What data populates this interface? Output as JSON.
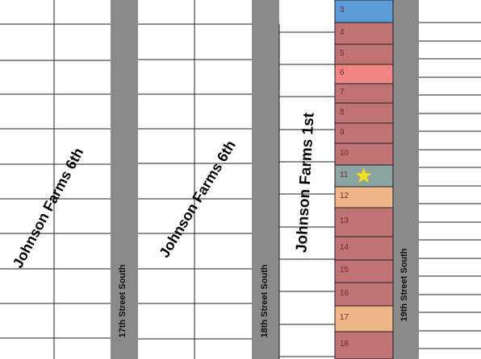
{
  "subdivisions": {
    "left": "Johnson Farms 6th",
    "middle": "Johnson Farms 6th",
    "right": "Johnson Farms 1st"
  },
  "streets": {
    "s17": "17th Street South",
    "s18": "18th Street South",
    "s19": "19th Street South"
  },
  "lots": [
    {
      "number": "3",
      "color": "#5b9bd8"
    },
    {
      "number": "4",
      "color": "#bf7373"
    },
    {
      "number": "5",
      "color": "#bf7373"
    },
    {
      "number": "6",
      "color": "#ef8585"
    },
    {
      "number": "7",
      "color": "#bf7373"
    },
    {
      "number": "8",
      "color": "#bf7373"
    },
    {
      "number": "9",
      "color": "#bf7373"
    },
    {
      "number": "10",
      "color": "#bf7373"
    },
    {
      "number": "11",
      "color": "#8aa3a3",
      "marker": "star-icon"
    },
    {
      "number": "12",
      "color": "#efb689"
    },
    {
      "number": "13",
      "color": "#bf7373"
    },
    {
      "number": "14",
      "color": "#bf7373"
    },
    {
      "number": "15",
      "color": "#bf7373"
    },
    {
      "number": "16",
      "color": "#bf7373"
    },
    {
      "number": "17",
      "color": "#efb689"
    },
    {
      "number": "18",
      "color": "#bf7373"
    }
  ],
  "colors": {
    "street": "#8a8a8a",
    "lot_line": "#222222",
    "marker": "#f7e024"
  }
}
